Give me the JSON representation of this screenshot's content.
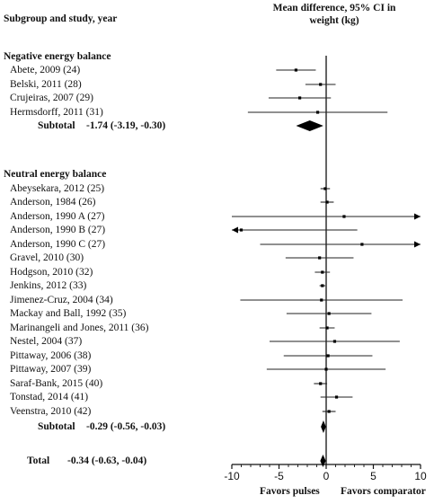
{
  "header": {
    "left": "Subgroup and study, year",
    "right": "Mean difference, 95% CI in weight (kg)"
  },
  "groups": [
    {
      "name": "Negative energy balance",
      "subtotal_label": "Subtotal",
      "subtotal_value": "-1.74 (-3.19, -0.30)",
      "studies": [
        "Abete, 2009 (24)",
        "Belski, 2011 (28)",
        "Crujeiras, 2007 (29)",
        "Hermsdorff, 2011 (31)"
      ]
    },
    {
      "name": "Neutral energy balance",
      "subtotal_label": "Subtotal",
      "subtotal_value": "-0.29 (-0.56, -0.03)",
      "studies": [
        "Abeysekara, 2012 (25)",
        "Anderson, 1984 (26)",
        "Anderson, 1990 A (27)",
        "Anderson, 1990 B (27)",
        "Anderson, 1990 C (27)",
        "Gravel, 2010 (30)",
        "Hodgson, 2010 (32)",
        "Jenkins, 2012 (33)",
        "Jimenez-Cruz, 2004 (34)",
        "Mackay and Ball, 1992 (35)",
        "Marinangeli and Jones, 2011 (36)",
        "Nestel, 2004 (37)",
        "Pittaway, 2006 (38)",
        "Pittaway, 2007 (39)",
        "Saraf-Bank, 2015 (40)",
        "Tonstad, 2014 (41)",
        "Veenstra, 2010 (42)"
      ]
    }
  ],
  "total": {
    "label": "Total",
    "value": "-0.34 (-0.63, -0.04)"
  },
  "favors": {
    "left": "Favors pulses",
    "right": "Favors comparator"
  },
  "chart_data": {
    "type": "forest",
    "xlim": [
      -10,
      10
    ],
    "xticks": [
      -10,
      -5,
      0,
      5,
      10
    ],
    "xtick_labels": [
      "-10",
      "-5",
      "0",
      "5",
      "10"
    ],
    "rows": [
      {
        "study": "Abete, 2009 (24)",
        "group": "Negative energy balance",
        "est": -3.2,
        "lo": -5.3,
        "hi": -1.1
      },
      {
        "study": "Belski, 2011 (28)",
        "group": "Negative energy balance",
        "est": -0.6,
        "lo": -2.2,
        "hi": 1.0
      },
      {
        "study": "Crujeiras, 2007 (29)",
        "group": "Negative energy balance",
        "est": -2.8,
        "lo": -6.1,
        "hi": 0.5
      },
      {
        "study": "Hermsdorff, 2011 (31)",
        "group": "Negative energy balance",
        "est": -0.9,
        "lo": -8.3,
        "hi": 6.5
      },
      {
        "study": "Abeysekara, 2012 (25)",
        "group": "Neutral energy balance",
        "est": -0.1,
        "lo": -0.6,
        "hi": 0.4
      },
      {
        "study": "Anderson, 1984 (26)",
        "group": "Neutral energy balance",
        "est": 0.1,
        "lo": -0.6,
        "hi": 0.8
      },
      {
        "study": "Anderson, 1990 A (27)",
        "group": "Neutral energy balance",
        "est": 1.9,
        "lo": -10,
        "hi": 10,
        "arrow_left": false,
        "arrow_right": true
      },
      {
        "study": "Anderson, 1990 B (27)",
        "group": "Neutral energy balance",
        "est": -9.0,
        "lo": -10,
        "hi": 3.3,
        "arrow_left": true,
        "arrow_right": false
      },
      {
        "study": "Anderson, 1990 C (27)",
        "group": "Neutral energy balance",
        "est": 3.8,
        "lo": -7.0,
        "hi": 10,
        "arrow_left": false,
        "arrow_right": true
      },
      {
        "study": "Gravel, 2010 (30)",
        "group": "Neutral energy balance",
        "est": -0.7,
        "lo": -4.3,
        "hi": 2.9
      },
      {
        "study": "Hodgson, 2010 (32)",
        "group": "Neutral energy balance",
        "est": -0.4,
        "lo": -1.2,
        "hi": 0.4
      },
      {
        "study": "Jenkins, 2012 (33)",
        "group": "Neutral energy balance",
        "est": -0.4,
        "lo": -0.7,
        "hi": -0.1
      },
      {
        "study": "Jimenez-Cruz, 2004 (34)",
        "group": "Neutral energy balance",
        "est": -0.5,
        "lo": -9.1,
        "hi": 8.1
      },
      {
        "study": "Mackay and Ball, 1992 (35)",
        "group": "Neutral energy balance",
        "est": 0.3,
        "lo": -4.2,
        "hi": 4.8
      },
      {
        "study": "Marinangeli and Jones, 2011 (36)",
        "group": "Neutral energy balance",
        "est": 0.1,
        "lo": -0.7,
        "hi": 0.9
      },
      {
        "study": "Nestel, 2004 (37)",
        "group": "Neutral energy balance",
        "est": 0.9,
        "lo": -6.0,
        "hi": 7.8
      },
      {
        "study": "Pittaway, 2006 (38)",
        "group": "Neutral energy balance",
        "est": 0.2,
        "lo": -4.5,
        "hi": 4.9
      },
      {
        "study": "Pittaway, 2007 (39)",
        "group": "Neutral energy balance",
        "est": 0.0,
        "lo": -6.3,
        "hi": 6.3
      },
      {
        "study": "Saraf-Bank, 2015 (40)",
        "group": "Neutral energy balance",
        "est": -0.6,
        "lo": -1.3,
        "hi": 0.1
      },
      {
        "study": "Tonstad, 2014 (41)",
        "group": "Neutral energy balance",
        "est": 1.1,
        "lo": -0.6,
        "hi": 2.8
      },
      {
        "study": "Veenstra, 2010 (42)",
        "group": "Neutral energy balance",
        "est": 0.3,
        "lo": -0.4,
        "hi": 1.0
      }
    ],
    "summaries": [
      {
        "label": "Subtotal",
        "group": "Negative energy balance",
        "est": -1.74,
        "lo": -3.19,
        "hi": -0.3
      },
      {
        "label": "Subtotal",
        "group": "Neutral energy balance",
        "est": -0.29,
        "lo": -0.56,
        "hi": -0.03
      },
      {
        "label": "Total",
        "group": "",
        "est": -0.34,
        "lo": -0.63,
        "hi": -0.04
      }
    ]
  }
}
